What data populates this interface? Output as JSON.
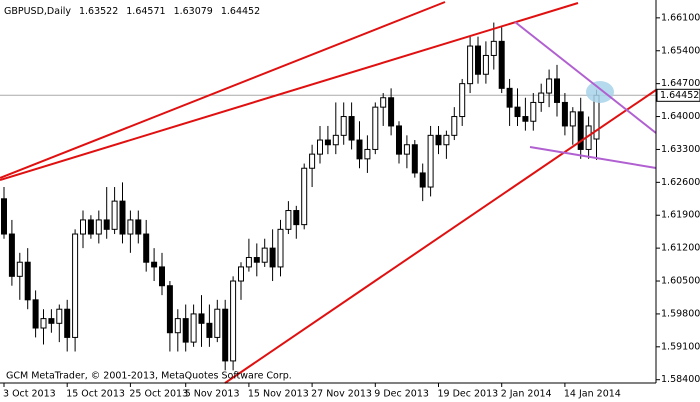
{
  "chart_data": {
    "type": "candlestick",
    "title": "GBPUSD,Daily",
    "footer": "GCM MetaTrader, © 2001-2013, MetaQuotes Software Corp.",
    "categories": [
      "3 Oct 2013",
      null,
      null,
      null,
      null,
      null,
      null,
      null,
      "15 Oct 2013",
      null,
      null,
      null,
      null,
      null,
      null,
      null,
      "25 Oct 2013",
      null,
      null,
      null,
      null,
      null,
      null,
      "5 Nov 2013",
      null,
      null,
      null,
      null,
      null,
      null,
      null,
      "15 Nov 2013",
      null,
      null,
      null,
      null,
      null,
      null,
      null,
      "27 Nov 2013",
      null,
      null,
      null,
      null,
      null,
      null,
      null,
      "9 Dec 2013",
      null,
      null,
      null,
      null,
      null,
      null,
      null,
      "19 Dec 2013",
      null,
      null,
      null,
      null,
      null,
      null,
      null,
      "2 Jan 2014",
      null,
      null,
      null,
      null,
      null,
      null,
      null,
      "14 Jan 2014",
      null,
      null,
      null,
      null
    ],
    "open": [
      1.6225,
      1.615,
      1.606,
      1.609,
      1.601,
      1.595,
      1.597,
      1.596,
      1.599,
      1.593,
      1.615,
      1.618,
      1.615,
      1.618,
      1.616,
      1.622,
      1.615,
      1.618,
      1.615,
      1.609,
      1.608,
      1.604,
      1.594,
      1.597,
      1.592,
      1.598,
      1.596,
      1.593,
      1.599,
      1.588,
      1.605,
      1.608,
      1.61,
      1.609,
      1.612,
      1.608,
      1.616,
      1.62,
      1.617,
      1.629,
      1.632,
      1.635,
      1.634,
      1.636,
      1.64,
      1.635,
      1.631,
      1.633,
      1.642,
      1.644,
      1.638,
      1.632,
      1.634,
      1.628,
      1.625,
      1.636,
      1.634,
      1.636,
      1.64,
      1.647,
      1.655,
      1.649,
      1.653,
      1.656,
      1.646,
      1.642,
      1.64,
      1.639,
      1.643,
      1.645,
      1.648,
      1.643,
      1.638,
      1.641,
      1.633,
      1.63522
    ],
    "high": [
      1.625,
      1.618,
      1.611,
      1.612,
      1.603,
      1.599,
      1.599,
      1.6,
      1.601,
      1.616,
      1.62,
      1.619,
      1.62,
      1.625,
      1.625,
      1.626,
      1.62,
      1.62,
      1.618,
      1.612,
      1.611,
      1.605,
      1.599,
      1.6,
      1.6,
      1.602,
      1.6,
      1.601,
      1.601,
      1.606,
      1.609,
      1.614,
      1.613,
      1.614,
      1.616,
      1.618,
      1.622,
      1.621,
      1.63,
      1.634,
      1.638,
      1.638,
      1.643,
      1.643,
      1.643,
      1.639,
      1.636,
      1.643,
      1.645,
      1.646,
      1.639,
      1.636,
      1.635,
      1.63,
      1.638,
      1.638,
      1.637,
      1.642,
      1.648,
      1.657,
      1.657,
      1.656,
      1.66,
      1.659,
      1.648,
      1.646,
      1.644,
      1.645,
      1.647,
      1.65,
      1.651,
      1.645,
      1.642,
      1.644,
      1.64,
      1.64571
    ],
    "low": [
      1.614,
      1.604,
      1.601,
      1.599,
      1.593,
      1.5915,
      1.594,
      1.592,
      1.59,
      1.59,
      1.612,
      1.614,
      1.613,
      1.614,
      1.615,
      1.613,
      1.611,
      1.613,
      1.607,
      1.605,
      1.602,
      1.59,
      1.59,
      1.59,
      1.591,
      1.591,
      1.591,
      1.592,
      1.586,
      1.586,
      1.601,
      1.607,
      1.606,
      1.608,
      1.605,
      1.606,
      1.615,
      1.614,
      1.616,
      1.625,
      1.63,
      1.632,
      1.632,
      1.634,
      1.633,
      1.629,
      1.628,
      1.632,
      1.638,
      1.636,
      1.63,
      1.629,
      1.627,
      1.622,
      1.623,
      1.632,
      1.631,
      1.635,
      1.638,
      1.645,
      1.647,
      1.647,
      1.65,
      1.645,
      1.638,
      1.638,
      1.637,
      1.637,
      1.641,
      1.642,
      1.64,
      1.636,
      1.634,
      1.631,
      1.631,
      1.63079
    ],
    "close": [
      1.615,
      1.606,
      1.609,
      1.601,
      1.595,
      1.597,
      1.596,
      1.599,
      1.593,
      1.615,
      1.618,
      1.615,
      1.618,
      1.616,
      1.622,
      1.615,
      1.618,
      1.615,
      1.609,
      1.608,
      1.604,
      1.594,
      1.597,
      1.592,
      1.598,
      1.596,
      1.593,
      1.599,
      1.588,
      1.605,
      1.608,
      1.61,
      1.609,
      1.612,
      1.608,
      1.616,
      1.62,
      1.617,
      1.629,
      1.632,
      1.635,
      1.634,
      1.636,
      1.64,
      1.635,
      1.631,
      1.633,
      1.642,
      1.644,
      1.638,
      1.632,
      1.634,
      1.628,
      1.625,
      1.636,
      1.634,
      1.636,
      1.64,
      1.647,
      1.655,
      1.649,
      1.653,
      1.656,
      1.646,
      1.642,
      1.64,
      1.639,
      1.643,
      1.645,
      1.648,
      1.643,
      1.638,
      1.641,
      1.633,
      1.638,
      1.64452
    ],
    "ylim": [
      1.5833,
      1.6648
    ],
    "yticks": [
      {
        "value": 1.661,
        "label": "1.66100"
      },
      {
        "value": 1.654,
        "label": "1.65400"
      },
      {
        "value": 1.647,
        "label": "1.64700"
      },
      {
        "value": 1.64,
        "label": "1.64000"
      },
      {
        "value": 1.633,
        "label": "1.63300"
      },
      {
        "value": 1.626,
        "label": "1.62600"
      },
      {
        "value": 1.619,
        "label": "1.61900"
      },
      {
        "value": 1.612,
        "label": "1.61200"
      },
      {
        "value": 1.605,
        "label": "1.60500"
      },
      {
        "value": 1.598,
        "label": "1.59800"
      },
      {
        "value": 1.591,
        "label": "1.59100"
      },
      {
        "value": 1.584,
        "label": "1.58400"
      }
    ],
    "up_color": "#ffffff",
    "down_color": "#000000"
  }
}
